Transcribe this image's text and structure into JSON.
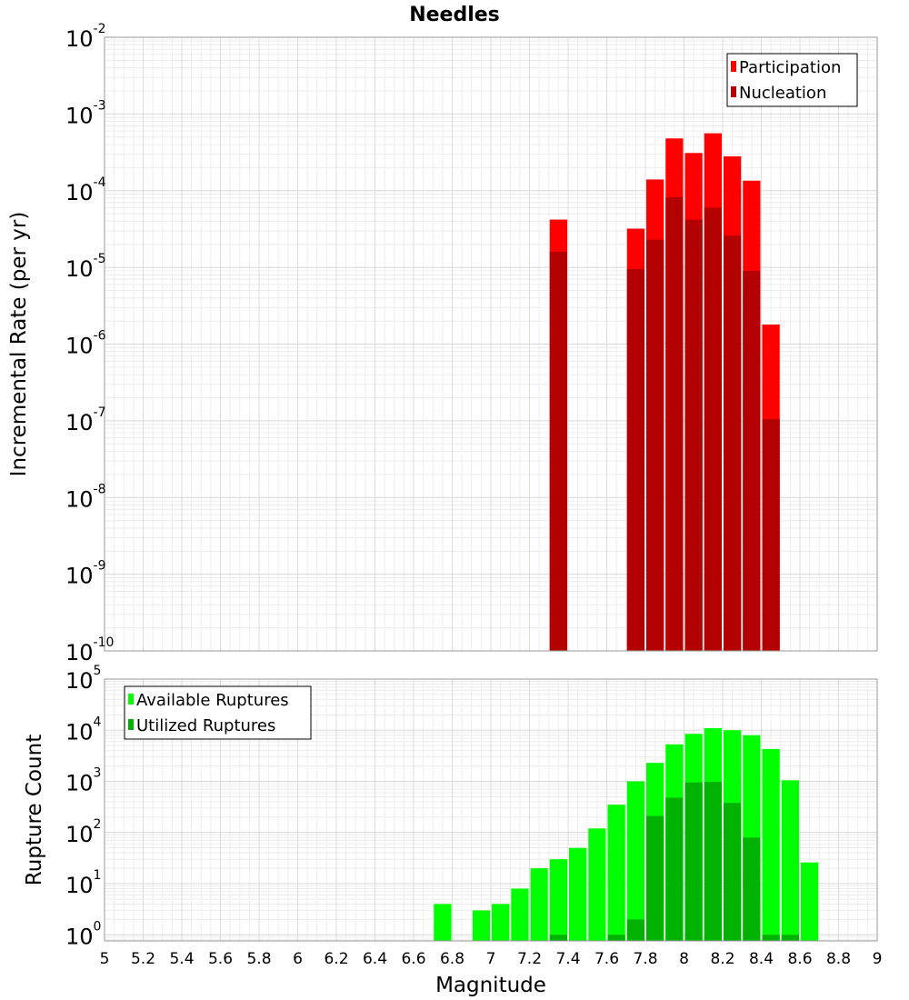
{
  "chart_data": {
    "type": "bar",
    "title": "Needles",
    "xlabel": "Magnitude",
    "xlim": [
      5,
      9
    ],
    "xticks": [
      "5",
      "5.2",
      "5.4",
      "5.6",
      "5.8",
      "6",
      "6.2",
      "6.4",
      "6.6",
      "6.8",
      "7",
      "7.2",
      "7.4",
      "7.6",
      "7.8",
      "8",
      "8.2",
      "8.4",
      "8.6",
      "8.8",
      "9"
    ],
    "bin_width": 0.1,
    "panels": [
      {
        "ylabel": "Incremental Rate (per yr)",
        "yscale": "log",
        "ylim_exp": [
          -10,
          -2
        ],
        "yticks": [
          {
            "base": "10",
            "exp": "-2"
          },
          {
            "base": "10",
            "exp": "-3"
          },
          {
            "base": "10",
            "exp": "-4"
          },
          {
            "base": "10",
            "exp": "-5"
          },
          {
            "base": "10",
            "exp": "-6"
          },
          {
            "base": "10",
            "exp": "-7"
          },
          {
            "base": "10",
            "exp": "-8"
          },
          {
            "base": "10",
            "exp": "-9"
          },
          {
            "base": "10",
            "exp": "-10"
          }
        ],
        "legend": {
          "position": "top-right"
        },
        "series": [
          {
            "name": "Participation",
            "color": "#ff0000",
            "points": [
              {
                "x": 7.35,
                "y": 4.2e-05
              },
              {
                "x": 7.75,
                "y": 3.2e-05
              },
              {
                "x": 7.85,
                "y": 0.00014
              },
              {
                "x": 7.95,
                "y": 0.00048
              },
              {
                "x": 8.05,
                "y": 0.00031
              },
              {
                "x": 8.15,
                "y": 0.00056
              },
              {
                "x": 8.25,
                "y": 0.00028
              },
              {
                "x": 8.35,
                "y": 0.000135
              },
              {
                "x": 8.45,
                "y": 1.8e-06
              }
            ]
          },
          {
            "name": "Nucleation",
            "color": "#b30000",
            "points": [
              {
                "x": 7.35,
                "y": 1.6e-05
              },
              {
                "x": 7.75,
                "y": 9.5e-06
              },
              {
                "x": 7.85,
                "y": 2.3e-05
              },
              {
                "x": 7.95,
                "y": 8.2e-05
              },
              {
                "x": 8.05,
                "y": 4.2e-05
              },
              {
                "x": 8.15,
                "y": 6e-05
              },
              {
                "x": 8.25,
                "y": 2.6e-05
              },
              {
                "x": 8.35,
                "y": 9e-06
              },
              {
                "x": 8.45,
                "y": 1.05e-07
              }
            ]
          }
        ]
      },
      {
        "ylabel": "Rupture Count",
        "yscale": "log",
        "ylim_exp": [
          -0.12,
          5
        ],
        "yticks": [
          {
            "base": "10",
            "exp": "5",
            "value": 5
          },
          {
            "base": "10",
            "exp": "4",
            "value": 4
          },
          {
            "base": "10",
            "exp": "3",
            "value": 3
          },
          {
            "base": "10",
            "exp": "2",
            "value": 2
          },
          {
            "base": "10",
            "exp": "1",
            "value": 1
          },
          {
            "base": "10",
            "exp": "0",
            "value": 0
          }
        ],
        "legend": {
          "position": "top-left"
        },
        "series": [
          {
            "name": "Available Ruptures",
            "color": "#00ff00",
            "points": [
              {
                "x": 6.75,
                "y": 4
              },
              {
                "x": 6.95,
                "y": 3
              },
              {
                "x": 7.05,
                "y": 4
              },
              {
                "x": 7.15,
                "y": 8
              },
              {
                "x": 7.25,
                "y": 20
              },
              {
                "x": 7.35,
                "y": 30
              },
              {
                "x": 7.45,
                "y": 50
              },
              {
                "x": 7.55,
                "y": 120
              },
              {
                "x": 7.65,
                "y": 350
              },
              {
                "x": 7.75,
                "y": 1000
              },
              {
                "x": 7.85,
                "y": 2300
              },
              {
                "x": 7.95,
                "y": 5300
              },
              {
                "x": 8.05,
                "y": 8500
              },
              {
                "x": 8.15,
                "y": 11000
              },
              {
                "x": 8.25,
                "y": 10000
              },
              {
                "x": 8.35,
                "y": 8000
              },
              {
                "x": 8.45,
                "y": 4300
              },
              {
                "x": 8.55,
                "y": 1050
              },
              {
                "x": 8.65,
                "y": 26
              }
            ]
          },
          {
            "name": "Utilized Ruptures",
            "color": "#00b300",
            "points": [
              {
                "x": 7.35,
                "y": 1
              },
              {
                "x": 7.65,
                "y": 1
              },
              {
                "x": 7.75,
                "y": 2
              },
              {
                "x": 7.85,
                "y": 210
              },
              {
                "x": 7.95,
                "y": 480
              },
              {
                "x": 8.05,
                "y": 950
              },
              {
                "x": 8.15,
                "y": 980
              },
              {
                "x": 8.25,
                "y": 380
              },
              {
                "x": 8.35,
                "y": 80
              },
              {
                "x": 8.45,
                "y": 1
              },
              {
                "x": 8.55,
                "y": 1
              }
            ]
          }
        ]
      }
    ]
  }
}
